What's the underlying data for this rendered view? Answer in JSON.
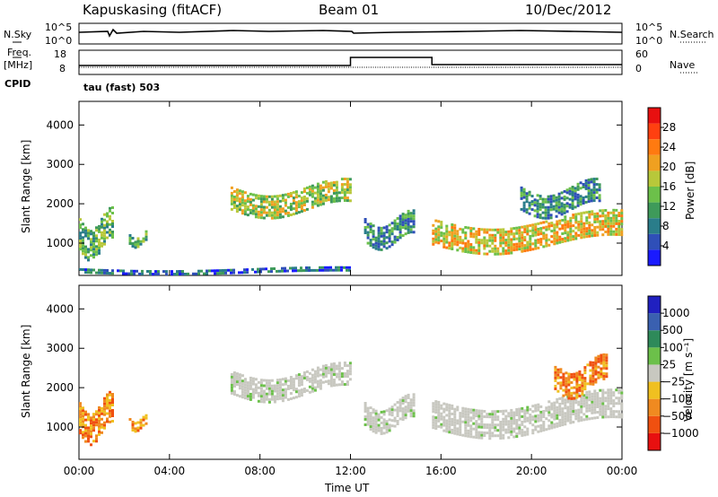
{
  "header": {
    "station": "Kapuskasing (fitACF)",
    "beam": "Beam 01",
    "date": "10/Dec/2012"
  },
  "status_panels": {
    "nsky_label": "N.Sky",
    "nsearch_label": "N.Search",
    "noise_ticks": [
      "10^5",
      "10^0"
    ],
    "noise_ticks_right": [
      "10^5",
      "10^0"
    ],
    "freq_label": "Freq.",
    "freq_unit": "[MHz]",
    "freq_ticks": [
      "18",
      "8"
    ],
    "nave_label": "Nave",
    "nave_ticks": [
      "60",
      "0"
    ],
    "cpid_label": "CPID",
    "cpid_value": "tau (fast) 503",
    "freq_step": {
      "start_hour": 12.0,
      "end_hour": 15.6,
      "level": 15,
      "base": 10
    }
  },
  "chart_data": [
    {
      "type": "heatmap",
      "name": "power",
      "ylabel": "Slant Range [km]",
      "xlabel": "",
      "yticks": [
        1000,
        2000,
        3000,
        4000
      ],
      "ylim": [
        180,
        4600
      ],
      "xlim": [
        0,
        24
      ],
      "colorbar": {
        "label": "Power [dB]",
        "ticks": [
          "4",
          "8",
          "12",
          "16",
          "20",
          "24",
          "28"
        ],
        "colors": [
          "#1a1aff",
          "#2f4fb8",
          "#2a7d8a",
          "#3e9a5a",
          "#6cc04a",
          "#b8c83a",
          "#f0a020",
          "#ff7a10",
          "#ff4010",
          "#e81010"
        ]
      },
      "regions": [
        {
          "x0": 0.0,
          "x1": 1.5,
          "y0": 650,
          "y1": 1850,
          "level": 4
        },
        {
          "x0": 2.2,
          "x1": 3.0,
          "y0": 900,
          "y1": 1300,
          "level": 4
        },
        {
          "x0": 6.7,
          "x1": 12.0,
          "y0": 1700,
          "y1": 2600,
          "level": 5
        },
        {
          "x0": 12.6,
          "x1": 14.8,
          "y0": 900,
          "y1": 1800,
          "level": 3
        },
        {
          "x0": 15.6,
          "x1": 24.0,
          "y0": 800,
          "y1": 1800,
          "level": 6
        },
        {
          "x0": 19.5,
          "x1": 23.0,
          "y0": 1700,
          "y1": 2600,
          "level": 3
        },
        {
          "x0": 0.0,
          "x1": 12.0,
          "y0": 200,
          "y1": 400,
          "level": 2
        }
      ]
    },
    {
      "type": "heatmap",
      "name": "velocity",
      "ylabel": "Slant Range [km]",
      "xlabel": "Time UT",
      "yticks": [
        1000,
        2000,
        3000,
        4000
      ],
      "ylim": [
        180,
        4600
      ],
      "xlim": [
        0,
        24
      ],
      "xticks": [
        "00:00",
        "04:00",
        "08:00",
        "12:00",
        "16:00",
        "20:00",
        "00:00"
      ],
      "colorbar": {
        "label": "Velocity  [m s⁻¹]",
        "ticks": [
          "1000",
          "500",
          "100",
          "25",
          "−25",
          "−100",
          "−500",
          "−1000"
        ],
        "colors": [
          "#2020c0",
          "#3a60b0",
          "#2e8a5a",
          "#6cc04a",
          "#c8c8c0",
          "#f0c020",
          "#f08a20",
          "#f05010",
          "#e81010"
        ]
      },
      "regions": [
        {
          "x0": 0.0,
          "x1": 1.5,
          "y0": 650,
          "y1": 1850,
          "level": "orange"
        },
        {
          "x0": 2.2,
          "x1": 3.0,
          "y0": 900,
          "y1": 1300,
          "level": "orange"
        },
        {
          "x0": 6.7,
          "x1": 12.0,
          "y0": 1700,
          "y1": 2600,
          "level": "grey"
        },
        {
          "x0": 12.6,
          "x1": 14.8,
          "y0": 900,
          "y1": 1800,
          "level": "grey"
        },
        {
          "x0": 15.6,
          "x1": 24.0,
          "y0": 800,
          "y1": 1900,
          "level": "grey"
        },
        {
          "x0": 21.0,
          "x1": 23.3,
          "y0": 1800,
          "y1": 2800,
          "level": "orange"
        }
      ]
    }
  ]
}
